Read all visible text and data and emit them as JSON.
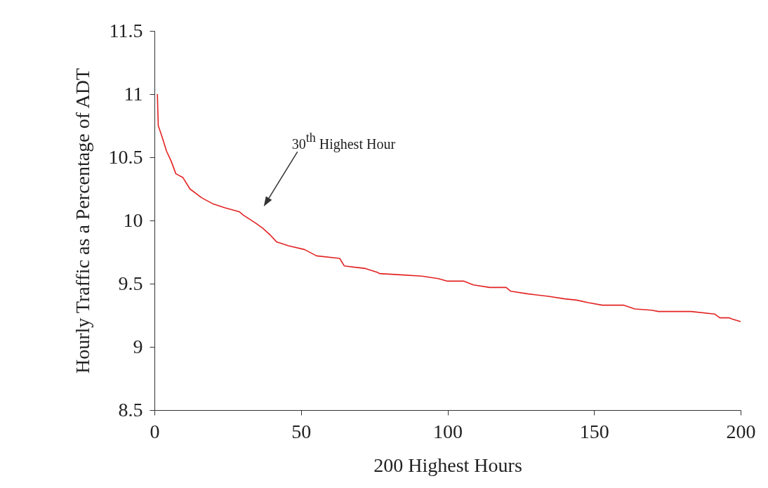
{
  "chart_data": {
    "type": "line",
    "xlabel": "200 Highest Hours",
    "ylabel": "Hourly Traffic as a Percentage of ADT",
    "x": [
      1,
      1.3,
      2.5,
      4.1,
      5.7,
      7.3,
      9.7,
      12.1,
      16.1,
      20.1,
      24.1,
      28.9,
      30.5,
      34.5,
      36.9,
      39.3,
      41.7,
      45.7,
      51.2,
      55.3,
      63.2,
      64.8,
      72,
      76,
      76.8,
      84,
      91.2,
      96.8,
      100,
      105.6,
      108.8,
      114.4,
      120,
      121.6,
      127.2,
      134.4,
      140,
      144,
      148,
      152.8,
      160,
      163.9,
      169.6,
      172,
      183.1,
      191.1,
      192.9,
      196,
      197.2,
      200
    ],
    "series": [
      {
        "color": "#e32222",
        "values": [
          11.0,
          10.75,
          10.67,
          10.55,
          10.47,
          10.37,
          10.34,
          10.25,
          10.18,
          10.13,
          10.1,
          10.07,
          10.04,
          9.98,
          9.94,
          9.89,
          9.83,
          9.8,
          9.77,
          9.72,
          9.7,
          9.64,
          9.62,
          9.59,
          9.58,
          9.57,
          9.56,
          9.54,
          9.52,
          9.52,
          9.49,
          9.47,
          9.47,
          9.44,
          9.42,
          9.4,
          9.38,
          9.37,
          9.35,
          9.33,
          9.33,
          9.3,
          9.29,
          9.28,
          9.28,
          9.26,
          9.23,
          9.23,
          9.22,
          9.2
        ]
      }
    ],
    "xlim": [
      0,
      200
    ],
    "xticks": [
      0,
      50,
      100,
      150,
      200
    ],
    "ylim": [
      8.5,
      11.5
    ],
    "yticks": [
      8.5,
      9,
      9.5,
      10,
      10.5,
      11,
      11.5
    ],
    "grid": false,
    "legend": false,
    "marker": "none",
    "line_style": "solid",
    "annotations": [
      "30$^{th}$ Highest Hour"
    ]
  }
}
